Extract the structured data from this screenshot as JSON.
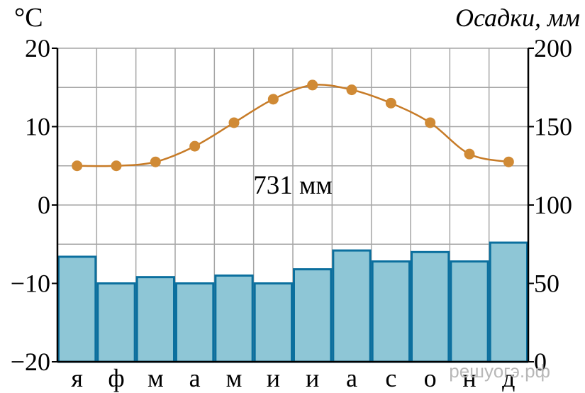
{
  "chart_data": {
    "type": "climate-chart",
    "left_axis_label": "°C",
    "right_axis_label": "Осадки, мм",
    "temp_ylim": [
      -20,
      20
    ],
    "precip_ylim": [
      0,
      200
    ],
    "temp_ticks": [
      "20",
      "10",
      "0",
      "−10",
      "−20"
    ],
    "precip_ticks": [
      "200",
      "150",
      "100",
      "50",
      "0"
    ],
    "months": [
      "я",
      "ф",
      "м",
      "а",
      "м",
      "и",
      "и",
      "а",
      "с",
      "о",
      "н",
      "д"
    ],
    "temperature": [
      5,
      5,
      5.5,
      7.5,
      10.5,
      13.5,
      15.3,
      14.7,
      13,
      10.5,
      6.5,
      5.5
    ],
    "precipitation": [
      67,
      50,
      54,
      50,
      55,
      50,
      59,
      71,
      64,
      70,
      64,
      76
    ],
    "annotation": "731 мм",
    "grid": true,
    "colors": {
      "bar_fill": "#8ec6d6",
      "bar_stroke": "#0b6f9e",
      "line": "#c77b27",
      "marker": "#d08a35"
    }
  },
  "watermark": "решуогэ.рф"
}
